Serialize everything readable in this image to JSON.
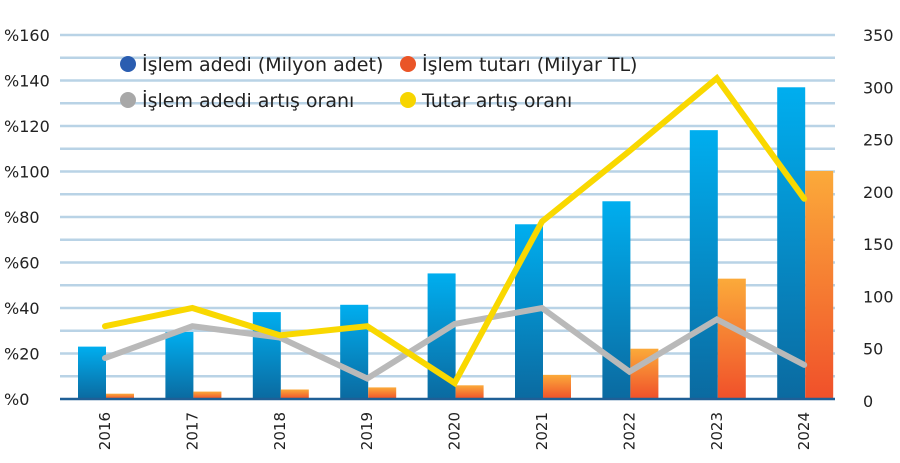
{
  "chart_data": {
    "type": "bar",
    "categories": [
      "2016",
      "2017",
      "2018",
      "2019",
      "2020",
      "2021",
      "2022",
      "2023",
      "2024"
    ],
    "series": [
      {
        "name": "İşlem adedi (Milyon adet)",
        "kind": "bar",
        "axis": "right",
        "color": "#0a9ee0",
        "values": [
          52,
          66,
          85,
          92,
          122,
          169,
          191,
          259,
          300
        ]
      },
      {
        "name": "İşlem tutarı (Milyar TL)",
        "kind": "bar",
        "axis": "right",
        "color": "#f7882a",
        "values": [
          7,
          9,
          11,
          13,
          15,
          25,
          50,
          117,
          220
        ]
      },
      {
        "name": "İşlem adedi artış oranı",
        "kind": "line",
        "axis": "left",
        "color": "#b9b9b9",
        "values": [
          18,
          32,
          27,
          9,
          33,
          40,
          12,
          35,
          15
        ]
      },
      {
        "name": "Tutar artış oranı",
        "kind": "line",
        "axis": "left",
        "color": "#f9d800",
        "values": [
          32,
          40,
          28,
          32,
          7,
          78,
          109,
          141,
          88
        ]
      }
    ],
    "left_axis": {
      "ylim": [
        0,
        160
      ],
      "ticks": [
        "%0",
        "%20",
        "%40",
        "%60",
        "%80",
        "%100",
        "%120",
        "%140",
        "%160"
      ]
    },
    "right_axis": {
      "ylim": [
        0,
        350
      ],
      "ticks": [
        "0",
        "50",
        "100",
        "150",
        "200",
        "250",
        "300",
        "350"
      ]
    },
    "legend_markers": {
      "bar1": "#2a5db0",
      "bar2": "#ea5527",
      "line1": "#a8a8a8",
      "line2": "#f7d500"
    },
    "grid": true,
    "legend_placement": "top-left",
    "title": "",
    "xlabel": "",
    "ylabel": ""
  }
}
